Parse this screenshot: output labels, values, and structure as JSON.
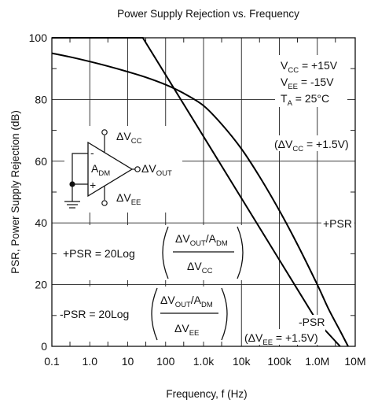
{
  "chart_data": {
    "type": "line",
    "title": "Power Supply Rejection vs. Frequency",
    "xlabel": "Frequency, f (Hz)",
    "ylabel": "PSR, Power Supply Rejection (dB)",
    "x_scale": "log",
    "xlim": [
      0.1,
      10000000
    ],
    "ylim": [
      0,
      100
    ],
    "x_ticks": [
      {
        "value": 0.1,
        "label": "0.1"
      },
      {
        "value": 1,
        "label": "1.0"
      },
      {
        "value": 10,
        "label": "10"
      },
      {
        "value": 100,
        "label": "100"
      },
      {
        "value": 1000,
        "label": "1.0k"
      },
      {
        "value": 10000,
        "label": "10k"
      },
      {
        "value": 100000,
        "label": "100k"
      },
      {
        "value": 1000000,
        "label": "1.0M"
      },
      {
        "value": 10000000,
        "label": "10M"
      }
    ],
    "y_ticks": [
      {
        "value": 0,
        "label": "0"
      },
      {
        "value": 20,
        "label": "20"
      },
      {
        "value": 40,
        "label": "40"
      },
      {
        "value": 60,
        "label": "60"
      },
      {
        "value": 80,
        "label": "80"
      },
      {
        "value": 100,
        "label": "100"
      }
    ],
    "grid": true,
    "series": [
      {
        "name": "+PSR",
        "points": [
          [
            0.1,
            95.0
          ],
          [
            0.3,
            93.8
          ],
          [
            1,
            92.3
          ],
          [
            3,
            90.8
          ],
          [
            10,
            89.0
          ],
          [
            30,
            87.2
          ],
          [
            100,
            84.8
          ],
          [
            300,
            82.0
          ],
          [
            1000,
            78.0
          ],
          [
            3000,
            72.0
          ],
          [
            10000,
            64.0
          ],
          [
            30000,
            55.0
          ],
          [
            100000,
            44.0
          ],
          [
            300000,
            33.0
          ],
          [
            1000000,
            20.0
          ],
          [
            2000000,
            12.0
          ],
          [
            4000000,
            5.0
          ],
          [
            6500000,
            0
          ]
        ]
      },
      {
        "name": "-PSR",
        "points": [
          [
            0.1,
            100
          ],
          [
            25,
            100
          ],
          [
            100,
            88.0
          ],
          [
            1000,
            68.0
          ],
          [
            10000,
            48.0
          ],
          [
            100000,
            28.0
          ],
          [
            1000000,
            8.0
          ],
          [
            4000000,
            0
          ]
        ]
      }
    ],
    "annotations": {
      "vcc": {
        "main": "V",
        "sub": "CC",
        "rest": " = +15V"
      },
      "vee": {
        "main": "V",
        "sub": "EE",
        "rest": " = -15V"
      },
      "ta": {
        "main": "T",
        "sub": "A",
        "rest": " = 25°C"
      },
      "dvcc_cond": {
        "pre": "(ΔV",
        "sub": "CC",
        "post": " = +1.5V)"
      },
      "dvee_cond": {
        "pre": "(ΔV",
        "sub": "EE",
        "post": " = +1.5V)"
      },
      "psr_plus_label": "+PSR",
      "psr_minus_label": "-PSR",
      "eq_plus": {
        "lhs": "+PSR = 20Log",
        "num_pre": "ΔV",
        "num_sub": "OUT",
        "num_mid": "/A",
        "num_sub2": "DM",
        "den_pre": "ΔV",
        "den_sub": "CC"
      },
      "eq_minus": {
        "lhs": "-PSR = 20Log",
        "num_pre": "ΔV",
        "num_sub": "OUT",
        "num_mid": "/A",
        "num_sub2": "DM",
        "den_pre": "ΔV",
        "den_sub": "EE"
      },
      "opamp": {
        "gain_main": "A",
        "gain_sub": "DM",
        "vcc_pre": "ΔV",
        "vcc_sub": "CC",
        "vee_pre": "ΔV",
        "vee_sub": "EE",
        "out_pre": "ΔV",
        "out_sub": "OUT",
        "minus": "-",
        "plus": "+"
      }
    }
  }
}
